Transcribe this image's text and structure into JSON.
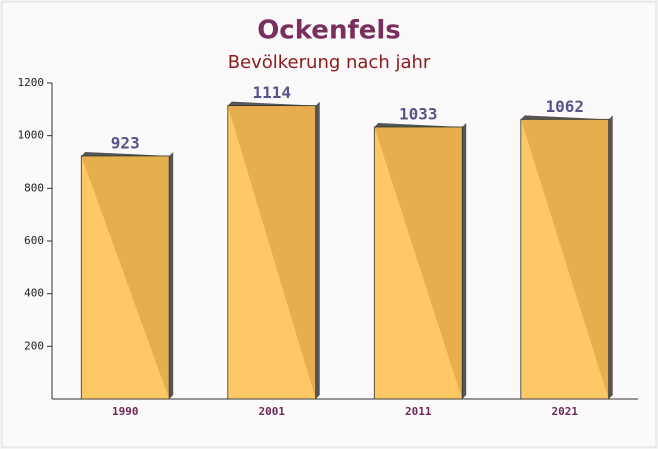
{
  "chart_data": {
    "type": "bar",
    "title": "Ockenfels",
    "subtitle": "Bevölkerung nach jahr",
    "categories": [
      "1990",
      "2001",
      "2011",
      "2021"
    ],
    "values": [
      923,
      1114,
      1033,
      1062
    ],
    "color": "#ffc04d",
    "ylim": [
      0,
      1200
    ],
    "yticks": [
      200,
      400,
      600,
      800,
      1000,
      1200
    ]
  }
}
